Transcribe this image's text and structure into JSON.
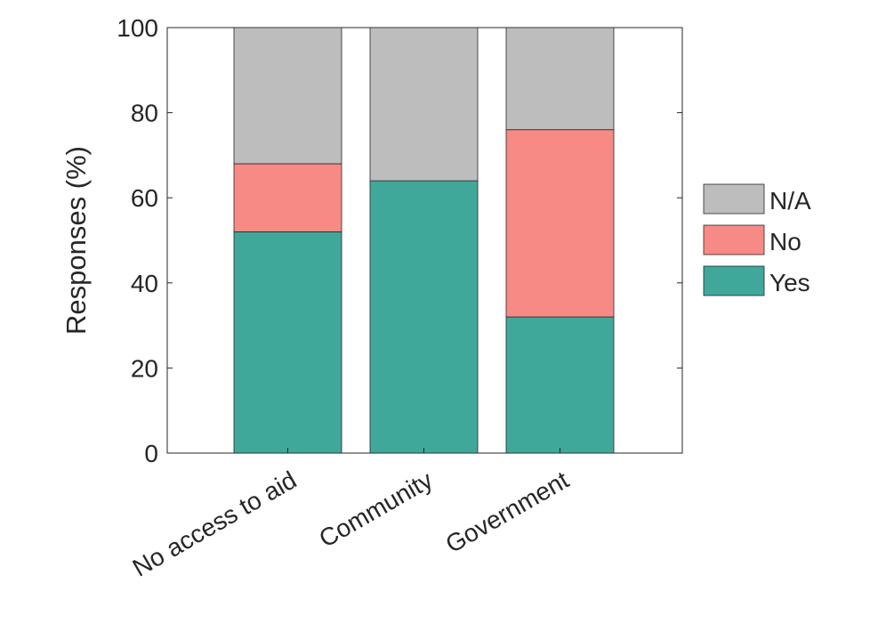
{
  "chart_data": {
    "type": "bar",
    "stacked": true,
    "title": "",
    "xlabel": "",
    "ylabel": "Responses (%)",
    "ylim": [
      0,
      100
    ],
    "yticks": [
      0,
      20,
      40,
      60,
      80,
      100
    ],
    "categories": [
      "No access to aid",
      "Community",
      "Government"
    ],
    "series": [
      {
        "name": "Yes",
        "values": [
          52,
          64,
          32
        ],
        "color": "#3fa89b"
      },
      {
        "name": "No",
        "values": [
          16,
          0,
          44
        ],
        "color": "#f88a85"
      },
      {
        "name": "N/A",
        "values": [
          32,
          36,
          24
        ],
        "color": "#bdbdbd"
      }
    ],
    "legend_placement": "right",
    "legend_order": [
      "N/A",
      "No",
      "Yes"
    ],
    "grid": false
  }
}
